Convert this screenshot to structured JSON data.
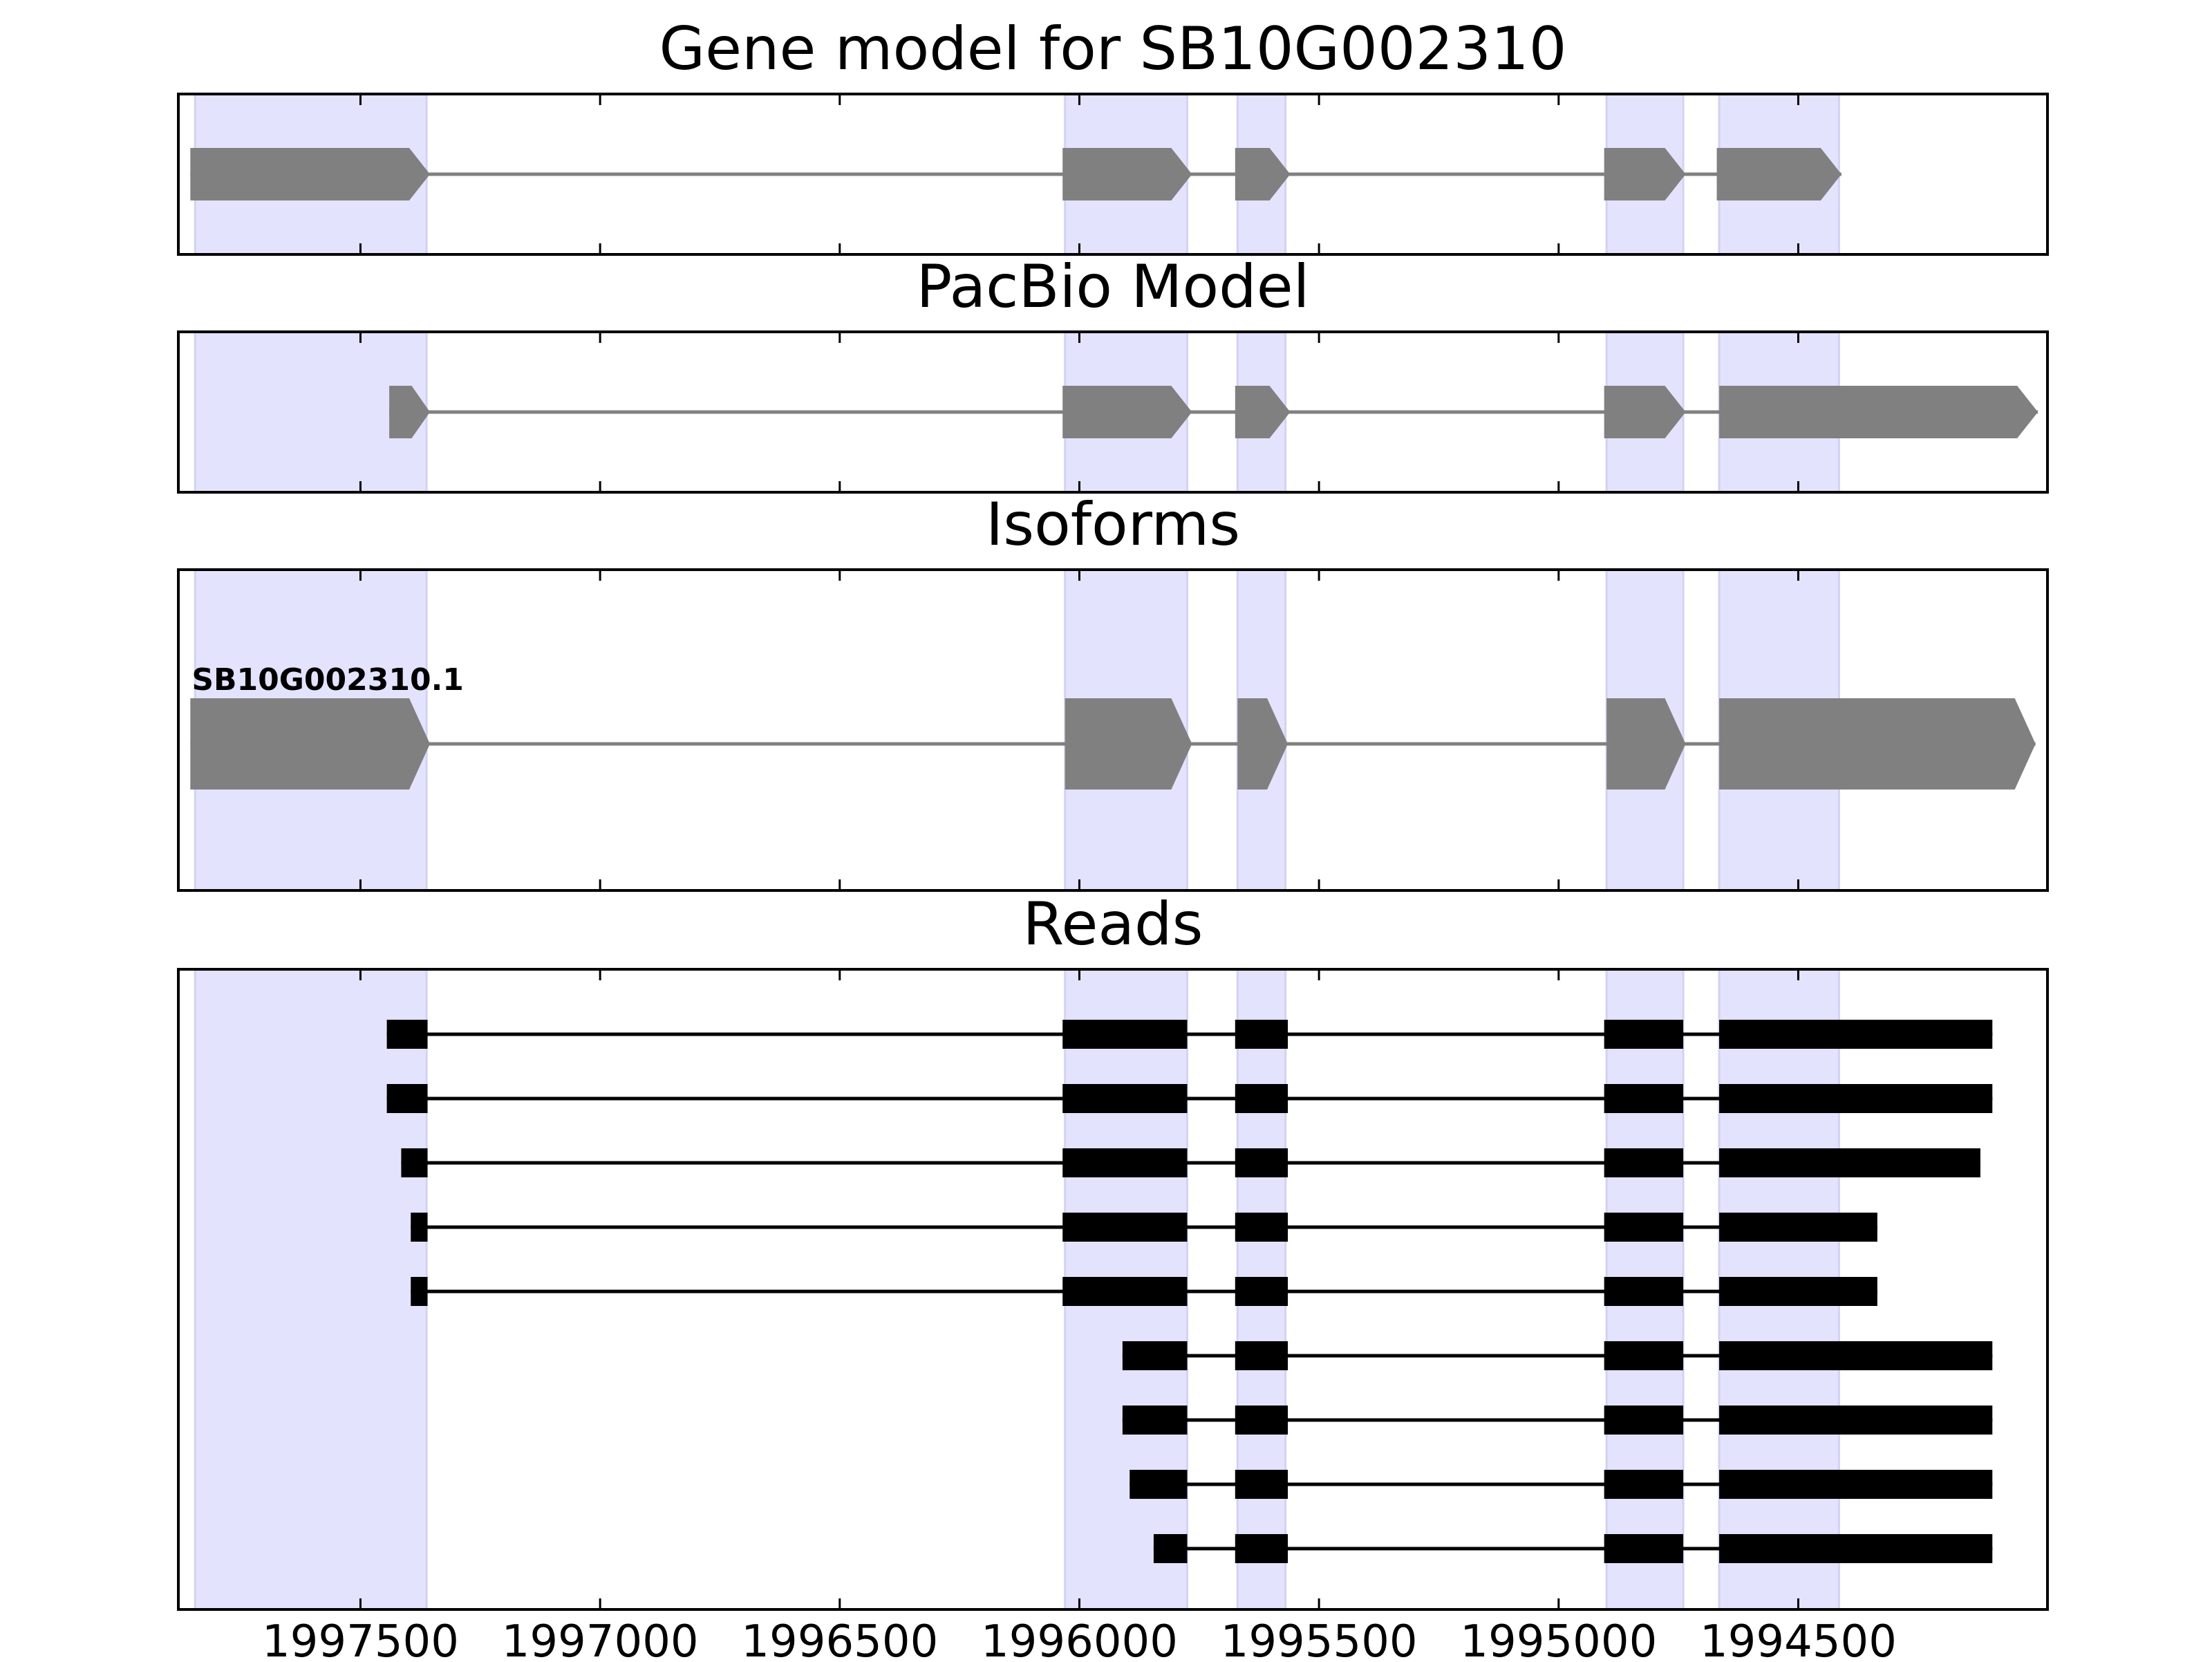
{
  "chart_data": {
    "type": "gene-structure",
    "x_reversed": true,
    "x_range": [
      1997880,
      1993980
    ],
    "x_ticks": [
      1997500,
      1997000,
      1996500,
      1996000,
      1995500,
      1995000,
      1994500
    ],
    "x_tick_labels": [
      "1997500",
      "1997000",
      "1996500",
      "1996000",
      "1995500",
      "1995000",
      "1994500"
    ],
    "highlight_regions": [
      [
        1997845,
        1997362
      ],
      [
        1996030,
        1995775
      ],
      [
        1995670,
        1995570
      ],
      [
        1994900,
        1994740
      ],
      [
        1994665,
        1994415
      ]
    ],
    "panels": [
      {
        "title": "Gene model for SB10G002310",
        "kind": "gene",
        "features": [
          {
            "name": "",
            "exons": [
              [
                1997855,
                1997355
              ],
              [
                1996035,
                1995765
              ],
              [
                1995675,
                1995560
              ],
              [
                1994905,
                1994735
              ],
              [
                1994670,
                1994410
              ]
            ]
          }
        ]
      },
      {
        "title": "PacBio Model",
        "kind": "gene",
        "features": [
          {
            "name": "",
            "exons": [
              [
                1997440,
                1997355
              ],
              [
                1996035,
                1995765
              ],
              [
                1995675,
                1995560
              ],
              [
                1994905,
                1994735
              ],
              [
                1994665,
                1994000
              ]
            ]
          }
        ]
      },
      {
        "title": "Isoforms",
        "kind": "gene",
        "features": [
          {
            "name": "SB10G002310.1",
            "exons": [
              [
                1997855,
                1997355
              ],
              [
                1996030,
                1995765
              ],
              [
                1995670,
                1995565
              ],
              [
                1994900,
                1994735
              ],
              [
                1994665,
                1994005
              ]
            ]
          }
        ]
      },
      {
        "title": "Reads",
        "kind": "reads",
        "features": [
          {
            "name": "",
            "exons": [
              [
                1997445,
                1997360
              ],
              [
                1996035,
                1995775
              ],
              [
                1995675,
                1995565
              ],
              [
                1994905,
                1994740
              ],
              [
                1994665,
                1994095
              ]
            ]
          },
          {
            "name": "",
            "exons": [
              [
                1997445,
                1997360
              ],
              [
                1996035,
                1995775
              ],
              [
                1995675,
                1995565
              ],
              [
                1994905,
                1994740
              ],
              [
                1994665,
                1994095
              ]
            ]
          },
          {
            "name": "",
            "exons": [
              [
                1997415,
                1997360
              ],
              [
                1996035,
                1995775
              ],
              [
                1995675,
                1995565
              ],
              [
                1994905,
                1994740
              ],
              [
                1994665,
                1994120
              ]
            ]
          },
          {
            "name": "",
            "exons": [
              [
                1997395,
                1997360
              ],
              [
                1996035,
                1995775
              ],
              [
                1995675,
                1995565
              ],
              [
                1994905,
                1994740
              ],
              [
                1994665,
                1994335
              ]
            ]
          },
          {
            "name": "",
            "exons": [
              [
                1997395,
                1997360
              ],
              [
                1996035,
                1995775
              ],
              [
                1995675,
                1995565
              ],
              [
                1994905,
                1994740
              ],
              [
                1994665,
                1994335
              ]
            ]
          },
          {
            "name": "",
            "exons": [
              [
                1995910,
                1995775
              ],
              [
                1995675,
                1995565
              ],
              [
                1994905,
                1994740
              ],
              [
                1994665,
                1994095
              ]
            ]
          },
          {
            "name": "",
            "exons": [
              [
                1995910,
                1995775
              ],
              [
                1995675,
                1995565
              ],
              [
                1994905,
                1994740
              ],
              [
                1994665,
                1994095
              ]
            ]
          },
          {
            "name": "",
            "exons": [
              [
                1995895,
                1995775
              ],
              [
                1995675,
                1995565
              ],
              [
                1994905,
                1994740
              ],
              [
                1994665,
                1994095
              ]
            ]
          },
          {
            "name": "",
            "exons": [
              [
                1995845,
                1995775
              ],
              [
                1995675,
                1995565
              ],
              [
                1994905,
                1994740
              ],
              [
                1994665,
                1994095
              ]
            ]
          }
        ]
      }
    ],
    "colors": {
      "highlight_fill": "#e3e3fd",
      "highlight_edge": "#d2d2f4",
      "gene_feature": "#808080",
      "read_feature": "#000000",
      "axes": "#000000"
    }
  }
}
